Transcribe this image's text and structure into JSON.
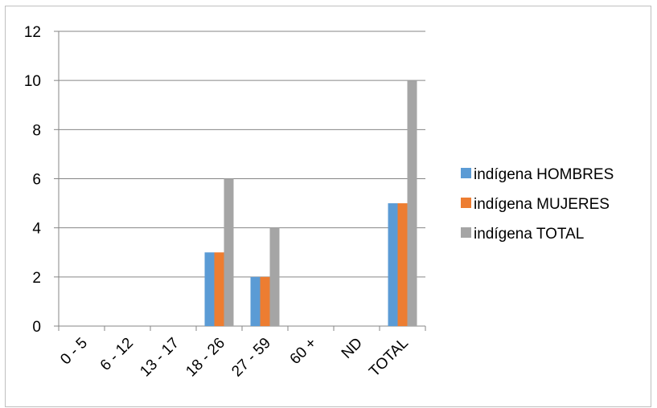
{
  "chart_data": {
    "type": "bar",
    "categories": [
      "0 - 5",
      "6 - 12",
      "13 - 17",
      "18 - 26",
      "27 - 59",
      "60 +",
      "ND",
      "TOTAL"
    ],
    "series": [
      {
        "name": "indígena HOMBRES",
        "values": [
          0,
          0,
          0,
          3,
          2,
          0,
          0,
          5
        ],
        "color": "#5b9bd5"
      },
      {
        "name": "indígena MUJERES",
        "values": [
          0,
          0,
          0,
          3,
          2,
          0,
          0,
          5
        ],
        "color": "#ed7d31"
      },
      {
        "name": "indígena TOTAL",
        "values": [
          0,
          0,
          0,
          6,
          4,
          0,
          0,
          10
        ],
        "color": "#a5a5a5"
      }
    ],
    "yticks": [
      0,
      2,
      4,
      6,
      8,
      10,
      12
    ],
    "ylim": [
      0,
      12
    ],
    "grid": true,
    "legend_position": "right",
    "axis_color": "#868686",
    "grid_color": "#868686"
  }
}
